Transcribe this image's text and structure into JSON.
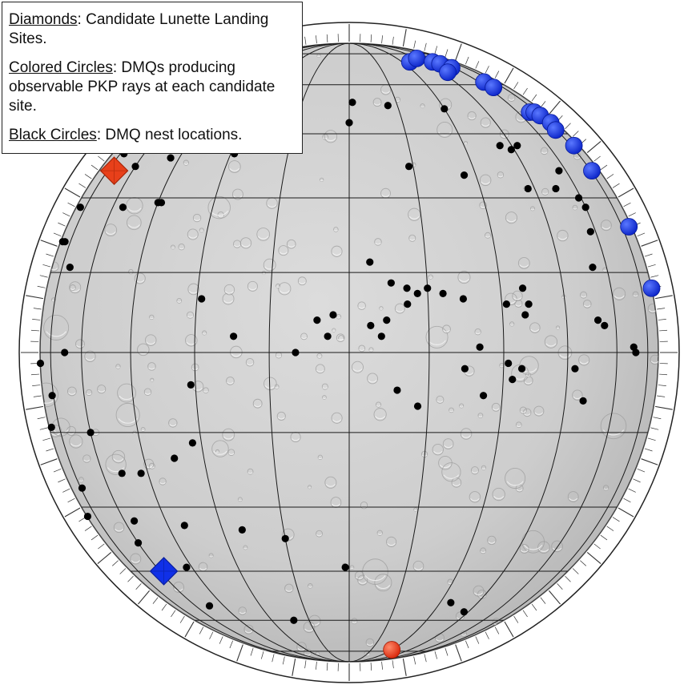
{
  "legend": {
    "diamonds": {
      "term": "Diamonds",
      "text": ": Candidate Lunette Landing Sites."
    },
    "colored_circles": {
      "term": "Colored Circles",
      "text": ": DMQs producing observable PKP rays at each candidate site."
    },
    "black_circles": {
      "term": "Black Circles",
      "text": ": DMQ nest locations."
    }
  },
  "colors": {
    "lunar_surface": "#cfcfcf",
    "grid_lines": "#1a1a1a",
    "dmq_nest": "#000000",
    "blue_site": "#1030e8",
    "red_site": "#e8401a"
  },
  "map_features": {
    "landing_sites": [
      {
        "color": "red",
        "lat": 36,
        "lon": -70
      },
      {
        "color": "blue",
        "lat": -45,
        "lon": -58
      }
    ],
    "observable_dmqs_blue": [
      {
        "lat": 70,
        "lon": 35
      },
      {
        "lat": 72,
        "lon": 45
      },
      {
        "lat": 70,
        "lon": 52
      },
      {
        "lat": 69,
        "lon": 55
      },
      {
        "lat": 67,
        "lon": 58
      },
      {
        "lat": 65,
        "lon": 49
      },
      {
        "lat": 61,
        "lon": 64
      },
      {
        "lat": 59,
        "lon": 65
      },
      {
        "lat": 51,
        "lon": 68
      },
      {
        "lat": 51,
        "lon": 72
      },
      {
        "lat": 50,
        "lon": 74
      },
      {
        "lat": 48,
        "lon": 77
      },
      {
        "lat": 46,
        "lon": 74
      },
      {
        "lat": 42,
        "lon": 78
      },
      {
        "lat": 36,
        "lon": 76
      },
      {
        "lat": 24,
        "lon": 82
      },
      {
        "lat": 12,
        "lon": 89
      }
    ],
    "observable_dmqs_red": [
      {
        "lat": -74,
        "lon": 30
      }
    ],
    "dmq_nests": [
      {
        "lat": 40,
        "lon": -72
      },
      {
        "lat": 37,
        "lon": -60
      },
      {
        "lat": 39,
        "lon": -48
      },
      {
        "lat": 40,
        "lon": -29
      },
      {
        "lat": 41,
        "lon": -27
      },
      {
        "lat": 28,
        "lon": -80
      },
      {
        "lat": 21,
        "lon": -83
      },
      {
        "lat": 21,
        "lon": -80
      },
      {
        "lat": 28,
        "lon": -56
      },
      {
        "lat": 29,
        "lon": -45
      },
      {
        "lat": 29,
        "lon": -44
      },
      {
        "lat": 16,
        "lon": -70
      },
      {
        "lat": 0,
        "lon": -67
      },
      {
        "lat": -2,
        "lon": -88
      },
      {
        "lat": -8,
        "lon": -76
      },
      {
        "lat": -14,
        "lon": -83
      },
      {
        "lat": -15,
        "lon": -60
      },
      {
        "lat": -23,
        "lon": -53
      },
      {
        "lat": -20,
        "lon": -37
      },
      {
        "lat": -6,
        "lon": -31
      },
      {
        "lat": -17,
        "lon": -32
      },
      {
        "lat": -26,
        "lon": -74
      },
      {
        "lat": -23,
        "lon": -47
      },
      {
        "lat": -34,
        "lon": -40
      },
      {
        "lat": -35,
        "lon": -25
      },
      {
        "lat": -37,
        "lon": -15
      },
      {
        "lat": -32,
        "lon": -86
      },
      {
        "lat": -38,
        "lon": -60
      },
      {
        "lat": -33,
        "lon": -56
      },
      {
        "lat": -44,
        "lon": -47
      },
      {
        "lat": -55,
        "lon": -52
      },
      {
        "lat": -60,
        "lon": -21
      },
      {
        "lat": -44,
        "lon": -1
      },
      {
        "lat": -54,
        "lon": 34
      },
      {
        "lat": -57,
        "lon": 43
      },
      {
        "lat": 3,
        "lon": -22
      },
      {
        "lat": 10,
        "lon": -29
      },
      {
        "lat": 0,
        "lon": -10
      },
      {
        "lat": 6,
        "lon": -6
      },
      {
        "lat": 3,
        "lon": -4
      },
      {
        "lat": 7,
        "lon": -3
      },
      {
        "lat": 54,
        "lon": 1
      },
      {
        "lat": 53,
        "lon": 12
      },
      {
        "lat": 52,
        "lon": 30
      },
      {
        "lat": 48,
        "lon": 0
      },
      {
        "lat": 37,
        "lon": 14
      },
      {
        "lat": 35,
        "lon": 27
      },
      {
        "lat": 32,
        "lon": 43
      },
      {
        "lat": 32,
        "lon": 52
      },
      {
        "lat": 30,
        "lon": 59
      },
      {
        "lat": 28,
        "lon": 60
      },
      {
        "lat": 17,
        "lon": 4
      },
      {
        "lat": 13,
        "lon": 8
      },
      {
        "lat": 12,
        "lon": 11
      },
      {
        "lat": 11,
        "lon": 13
      },
      {
        "lat": 9,
        "lon": 11
      },
      {
        "lat": 6,
        "lon": 7
      },
      {
        "lat": 5,
        "lon": 4
      },
      {
        "lat": 3,
        "lon": 6
      },
      {
        "lat": 12,
        "lon": 15
      },
      {
        "lat": 11,
        "lon": 18
      },
      {
        "lat": 10,
        "lon": 22
      },
      {
        "lat": 9,
        "lon": 31
      },
      {
        "lat": 12,
        "lon": 35
      },
      {
        "lat": 9,
        "lon": 36
      },
      {
        "lat": 7,
        "lon": 35
      },
      {
        "lat": 1,
        "lon": 25
      },
      {
        "lat": -3,
        "lon": 22
      },
      {
        "lat": -2,
        "lon": 31
      },
      {
        "lat": -3,
        "lon": 34
      },
      {
        "lat": -5,
        "lon": 32
      },
      {
        "lat": -8,
        "lon": 26
      },
      {
        "lat": -10,
        "lon": 13
      },
      {
        "lat": -7,
        "lon": 9
      },
      {
        "lat": 5,
        "lon": 56
      },
      {
        "lat": 1,
        "lon": 67
      },
      {
        "lat": 0,
        "lon": 68
      },
      {
        "lat": 16,
        "lon": 55
      },
      {
        "lat": 23,
        "lon": 58
      },
      {
        "lat": 6,
        "lon": 54
      },
      {
        "lat": -9,
        "lon": 50
      },
      {
        "lat": -3,
        "lon": 47
      },
      {
        "lat": 36,
        "lon": 57
      },
      {
        "lat": 42,
        "lon": 41
      },
      {
        "lat": 41,
        "lon": 44
      },
      {
        "lat": 42,
        "lon": 47
      }
    ]
  }
}
